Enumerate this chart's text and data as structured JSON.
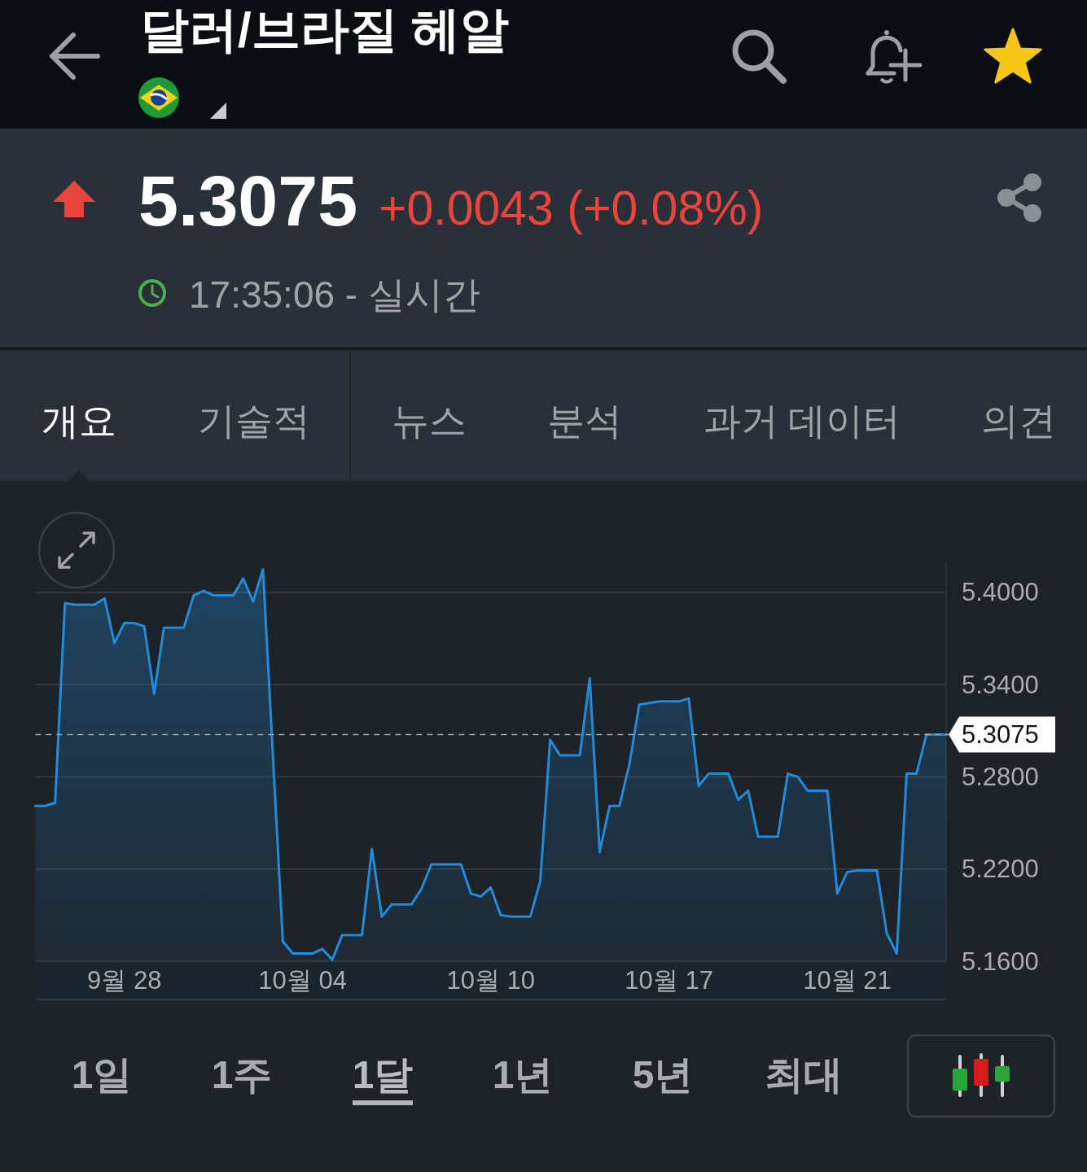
{
  "chart_data": {
    "type": "area",
    "title": "달러/브라질 헤알",
    "annotations": [
      "5.3075",
      "+0.0043 (+0.08%)",
      "17:35:06 - 실시간",
      "개요",
      "기술적",
      "뉴스",
      "분석",
      "과거 데이터",
      "의견",
      "1일",
      "1주",
      "1달",
      "1년",
      "5년",
      "최대"
    ],
    "categories": [
      null,
      null,
      null,
      null,
      null,
      null,
      null,
      null,
      null,
      "9월 28",
      null,
      null,
      null,
      null,
      null,
      null,
      null,
      null,
      null,
      null,
      null,
      null,
      null,
      null,
      null,
      null,
      null,
      "10월 04",
      null,
      null,
      null,
      null,
      null,
      null,
      null,
      null,
      null,
      null,
      null,
      null,
      null,
      null,
      null,
      null,
      null,
      null,
      "10월 10",
      null,
      null,
      null,
      null,
      null,
      null,
      null,
      null,
      null,
      null,
      null,
      null,
      null,
      null,
      null,
      null,
      null,
      "10월 17",
      null,
      null,
      null,
      null,
      null,
      null,
      null,
      null,
      null,
      null,
      null,
      null,
      null,
      null,
      null,
      null,
      null,
      "10월 21",
      null,
      null,
      null,
      null,
      null,
      null,
      null,
      null,
      null,
      null
    ],
    "values": [
      5.261,
      5.261,
      5.263,
      5.393,
      5.392,
      5.392,
      5.392,
      5.396,
      5.367,
      5.38,
      5.38,
      5.378,
      5.334,
      5.377,
      5.377,
      5.377,
      5.398,
      5.401,
      5.398,
      5.398,
      5.398,
      5.409,
      5.394,
      5.415,
      5.294,
      5.173,
      5.165,
      5.165,
      5.165,
      5.168,
      5.161,
      5.177,
      5.177,
      5.177,
      5.233,
      5.189,
      5.197,
      5.197,
      5.197,
      5.207,
      5.223,
      5.223,
      5.223,
      5.223,
      5.204,
      5.202,
      5.208,
      5.19,
      5.189,
      5.189,
      5.189,
      5.212,
      5.304,
      5.294,
      5.294,
      5.294,
      5.344,
      5.231,
      5.261,
      5.261,
      5.288,
      5.327,
      5.328,
      5.329,
      5.329,
      5.329,
      5.331,
      5.274,
      5.282,
      5.282,
      5.282,
      5.265,
      5.271,
      5.241,
      5.241,
      5.241,
      5.282,
      5.28,
      5.271,
      5.271,
      5.271,
      5.204,
      5.218,
      5.219,
      5.219,
      5.219,
      5.178,
      5.165,
      5.282,
      5.282,
      5.3075,
      5.3075,
      5.3075
    ],
    "color": "#238bd8",
    "ylim": [
      5.16,
      5.42
    ],
    "yticks": [
      {
        "value": 5.16,
        "label": "5.1600"
      },
      {
        "value": 5.22,
        "label": "5.2200"
      },
      {
        "value": 5.28,
        "label": "5.2800"
      },
      {
        "value": 5.34,
        "label": "5.3400"
      },
      {
        "value": 5.4,
        "label": "5.4000"
      }
    ],
    "grid": "y",
    "ref_lines": [
      {
        "axis": "y",
        "value": 5.3075,
        "label": "5.3075",
        "color": "#9ea3a8",
        "line_style": "dashed"
      }
    ]
  }
}
